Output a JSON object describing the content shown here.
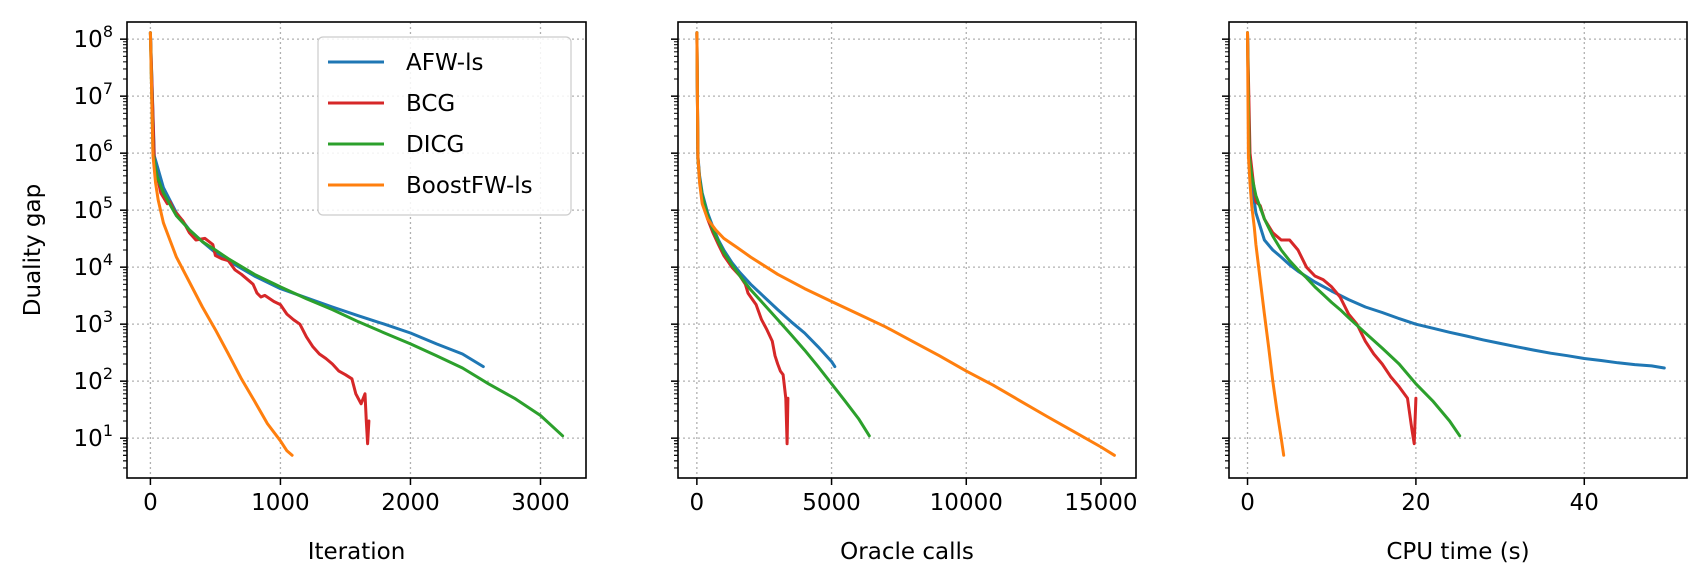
{
  "chart_data": [
    {
      "type": "line",
      "xlabel": "Iteration",
      "ylabel": "Duality gap",
      "yscale": "log",
      "xlim": [
        -180,
        3350
      ],
      "ylim": [
        2,
        200000000
      ],
      "xticks": [
        "0",
        "1000",
        "2000",
        "3000"
      ],
      "yticks": [
        "10^1",
        "10^2",
        "10^3",
        "10^4",
        "10^5",
        "10^6",
        "10^7",
        "10^8"
      ],
      "grid": true,
      "legend": "top-right",
      "series": [
        {
          "name": "AFW-ls",
          "color": "#1f77b4",
          "x": [
            0,
            30,
            100,
            200,
            300,
            400,
            500,
            600,
            700,
            800,
            1000,
            1200,
            1400,
            1600,
            1800,
            2000,
            2200,
            2400,
            2560
          ],
          "y": [
            130000000,
            900000,
            250000,
            90000,
            45000,
            28000,
            18000,
            13000,
            9500,
            7000,
            4200,
            2900,
            2000,
            1400,
            1000,
            700,
            450,
            300,
            180
          ]
        },
        {
          "name": "BCG",
          "color": "#d62728",
          "x": [
            0,
            30,
            80,
            130,
            150,
            180,
            250,
            300,
            350,
            420,
            480,
            500,
            550,
            600,
            650,
            700,
            750,
            790,
            820,
            850,
            880,
            950,
            1000,
            1050,
            1100,
            1150,
            1200,
            1250,
            1300,
            1350,
            1400,
            1450,
            1500,
            1550,
            1580,
            1620,
            1650,
            1660,
            1670,
            1680
          ],
          "y": [
            130000000,
            700000,
            200000,
            130000,
            140000,
            100000,
            65000,
            40000,
            30000,
            32000,
            25000,
            16000,
            14000,
            13000,
            9000,
            7500,
            6000,
            5000,
            3500,
            3000,
            3200,
            2500,
            2200,
            1500,
            1200,
            1000,
            600,
            400,
            300,
            250,
            200,
            150,
            130,
            110,
            60,
            40,
            60,
            20,
            8,
            20
          ]
        },
        {
          "name": "DICG",
          "color": "#2ca02c",
          "x": [
            0,
            20,
            50,
            100,
            200,
            300,
            400,
            500,
            600,
            800,
            1000,
            1200,
            1400,
            1600,
            1800,
            2000,
            2200,
            2400,
            2600,
            2800,
            3000,
            3170
          ],
          "y": [
            130000000,
            1000000,
            400000,
            200000,
            80000,
            45000,
            28000,
            20000,
            14000,
            7500,
            4500,
            2800,
            1800,
            1100,
            700,
            450,
            280,
            170,
            90,
            50,
            25,
            11
          ]
        },
        {
          "name": "BoostFW-ls",
          "color": "#ff7f0e",
          "x": [
            0,
            20,
            40,
            60,
            100,
            150,
            200,
            300,
            400,
            500,
            600,
            700,
            800,
            900,
            1000,
            1050,
            1090
          ],
          "y": [
            130000000,
            900000,
            300000,
            150000,
            60000,
            30000,
            15000,
            5500,
            2000,
            800,
            300,
            110,
            45,
            18,
            9,
            6,
            5
          ]
        }
      ]
    },
    {
      "type": "line",
      "xlabel": "Oracle calls",
      "ylabel": "",
      "yscale": "log",
      "xlim": [
        -700,
        16300
      ],
      "ylim": [
        2,
        200000000
      ],
      "xticks": [
        "0",
        "5000",
        "10000",
        "15000"
      ],
      "grid": true,
      "series": [
        {
          "name": "AFW-ls",
          "color": "#1f77b4",
          "x": [
            0,
            40,
            100,
            200,
            400,
            600,
            800,
            1000,
            1300,
            1600,
            2000,
            2500,
            3000,
            3500,
            4000,
            4500,
            5000,
            5120
          ],
          "y": [
            130000000,
            900000,
            400000,
            200000,
            90000,
            50000,
            30000,
            20000,
            12000,
            8000,
            5000,
            3000,
            1800,
            1100,
            700,
            400,
            220,
            180
          ]
        },
        {
          "name": "BCG",
          "color": "#d62728",
          "x": [
            0,
            40,
            100,
            200,
            400,
            600,
            800,
            1000,
            1300,
            1600,
            1800,
            1900,
            2000,
            2200,
            2400,
            2600,
            2800,
            2900,
            3000,
            3100,
            3200,
            3300,
            3350,
            3380
          ],
          "y": [
            130000000,
            800000,
            350000,
            160000,
            70000,
            40000,
            25000,
            16000,
            10000,
            7000,
            5000,
            3500,
            3000,
            2200,
            1200,
            800,
            500,
            280,
            200,
            150,
            130,
            50,
            8,
            50
          ]
        },
        {
          "name": "DICG",
          "color": "#2ca02c",
          "x": [
            0,
            40,
            100,
            200,
            400,
            600,
            800,
            1000,
            1300,
            1600,
            2000,
            2500,
            3000,
            3500,
            4000,
            4500,
            5000,
            5500,
            6000,
            6400
          ],
          "y": [
            130000000,
            800000,
            350000,
            180000,
            80000,
            45000,
            28000,
            18000,
            11000,
            7000,
            4000,
            2200,
            1200,
            650,
            350,
            180,
            90,
            45,
            22,
            11
          ]
        },
        {
          "name": "BoostFW-ls",
          "color": "#ff7f0e",
          "x": [
            0,
            40,
            100,
            200,
            400,
            700,
            1000,
            1500,
            2000,
            3000,
            4000,
            5000,
            6000,
            7000,
            8000,
            9000,
            10000,
            11000,
            12000,
            13000,
            14000,
            15000,
            15500
          ],
          "y": [
            130000000,
            900000,
            300000,
            130000,
            70000,
            45000,
            32000,
            22000,
            15000,
            7500,
            4200,
            2500,
            1500,
            900,
            500,
            280,
            150,
            85,
            45,
            24,
            13,
            7,
            5
          ]
        }
      ]
    },
    {
      "type": "line",
      "xlabel": "CPU time (s)",
      "ylabel": "",
      "yscale": "log",
      "xlim": [
        -2.2,
        52.2
      ],
      "ylim": [
        2,
        200000000
      ],
      "xticks": [
        "0",
        "20",
        "40"
      ],
      "grid": true,
      "series": [
        {
          "name": "AFW-ls",
          "color": "#1f77b4",
          "x": [
            0,
            0.2,
            0.5,
            1,
            2,
            3,
            4,
            5,
            6,
            8,
            10,
            12,
            14,
            16,
            18,
            20,
            22,
            24,
            26,
            28,
            30,
            32,
            34,
            36,
            38,
            40,
            42,
            44,
            46,
            48,
            49.5
          ],
          "y": [
            130000000,
            1000000,
            300000,
            90000,
            30000,
            20000,
            15000,
            11000,
            8500,
            5500,
            3800,
            2700,
            2000,
            1600,
            1250,
            1000,
            850,
            720,
            620,
            530,
            460,
            400,
            350,
            310,
            280,
            250,
            230,
            210,
            195,
            185,
            170
          ]
        },
        {
          "name": "BCG",
          "color": "#d62728",
          "x": [
            0,
            0.3,
            0.7,
            1,
            1.5,
            2,
            3,
            4,
            5,
            6,
            7,
            8,
            9,
            10,
            11,
            12,
            13,
            14,
            15,
            16,
            17,
            18,
            19,
            19.5,
            19.8,
            20
          ],
          "y": [
            130000000,
            1000000,
            300000,
            140000,
            120000,
            70000,
            40000,
            30000,
            30000,
            20000,
            10000,
            7000,
            6000,
            4500,
            3000,
            1500,
            1000,
            500,
            300,
            200,
            120,
            80,
            50,
            15,
            8,
            50
          ]
        },
        {
          "name": "DICG",
          "color": "#2ca02c",
          "x": [
            0,
            0.2,
            0.5,
            1,
            2,
            3,
            4,
            5,
            6,
            7,
            8,
            9,
            10,
            11,
            12,
            14,
            16,
            18,
            20,
            22,
            24,
            25.2
          ],
          "y": [
            130000000,
            900000,
            400000,
            180000,
            70000,
            35000,
            20000,
            13000,
            9000,
            6500,
            4500,
            3300,
            2400,
            1800,
            1300,
            700,
            380,
            200,
            90,
            45,
            20,
            11
          ]
        },
        {
          "name": "BoostFW-ls",
          "color": "#ff7f0e",
          "x": [
            0,
            0.1,
            0.3,
            0.5,
            0.8,
            1,
            1.5,
            2,
            2.5,
            3,
            3.5,
            4,
            4.3
          ],
          "y": [
            130000000,
            900000,
            300000,
            120000,
            50000,
            25000,
            6000,
            1500,
            400,
            100,
            30,
            10,
            5
          ]
        }
      ]
    }
  ]
}
